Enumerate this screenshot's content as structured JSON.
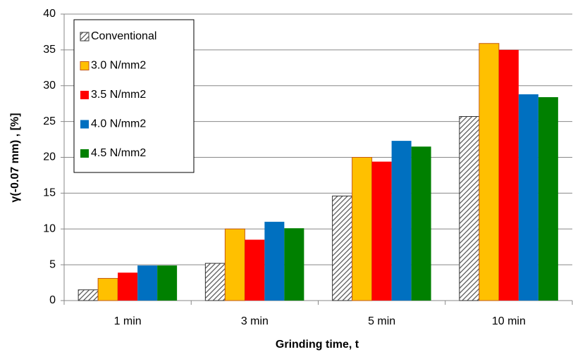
{
  "chart_data": {
    "type": "bar",
    "x_label": "Grinding time, t",
    "y_label": "γ(-0.07 mm) , [%]",
    "categories": [
      "1 min",
      "3 min",
      "5 min",
      "10 min"
    ],
    "series": [
      {
        "name": "Conventional",
        "color": "#7f7f7f",
        "pattern": "hatch",
        "values": [
          1.5,
          5.2,
          14.6,
          25.7
        ]
      },
      {
        "name": "3.0 N/mm2",
        "color": "#ffc000",
        "values": [
          3.1,
          10.0,
          20.0,
          35.9
        ]
      },
      {
        "name": "3.5 N/mm2",
        "color": "#ff0000",
        "values": [
          3.9,
          8.5,
          19.4,
          35.0
        ]
      },
      {
        "name": "4.0 N/mm2",
        "color": "#0070c0",
        "values": [
          4.9,
          11.0,
          22.3,
          28.8
        ]
      },
      {
        "name": "4.5 N/mm2",
        "color": "#008000",
        "values": [
          4.9,
          10.1,
          21.5,
          28.4
        ]
      }
    ],
    "ylim": [
      0,
      40
    ],
    "yticks": [
      0,
      5,
      10,
      15,
      20,
      25,
      30,
      35,
      40
    ],
    "grid": true,
    "legend": "top-left"
  }
}
